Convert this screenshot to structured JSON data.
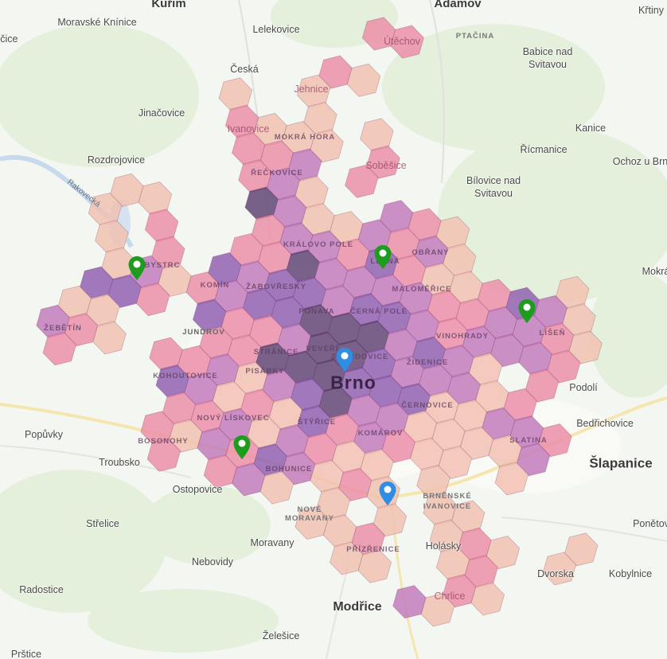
{
  "hexbins": {
    "level_colors": {
      "1": "#f2bfb0",
      "2": "#eb8ba6",
      "3": "#c177b9",
      "4": "#8d5cae",
      "5": "#5d4070"
    },
    "cells": [
      [
        5,
        -12,
        2
      ],
      [
        6,
        -12,
        2
      ],
      [
        3,
        -10,
        2
      ],
      [
        4,
        -10,
        1
      ],
      [
        2,
        -9,
        1
      ],
      [
        -1,
        -8,
        1
      ],
      [
        2,
        -8,
        1
      ],
      [
        4,
        -8,
        1
      ],
      [
        -1,
        -7,
        2
      ],
      [
        0,
        -7,
        1
      ],
      [
        1,
        -7,
        1
      ],
      [
        2,
        -7,
        1
      ],
      [
        4,
        -7,
        2
      ],
      [
        -1,
        -6,
        2
      ],
      [
        0,
        -6,
        2
      ],
      [
        1,
        -6,
        3
      ],
      [
        3,
        -6,
        2
      ],
      [
        -1,
        -5,
        2
      ],
      [
        0,
        -5,
        3
      ],
      [
        1,
        -5,
        1
      ],
      [
        4,
        -5,
        3
      ],
      [
        5,
        -5,
        2
      ],
      [
        6,
        -5,
        1
      ],
      [
        -1,
        -4,
        5
      ],
      [
        0,
        -4,
        3
      ],
      [
        1,
        -4,
        1
      ],
      [
        2,
        -4,
        1
      ],
      [
        3,
        -4,
        3
      ],
      [
        4,
        -4,
        2
      ],
      [
        5,
        -4,
        3
      ],
      [
        6,
        -4,
        1
      ],
      [
        10,
        -4,
        1
      ],
      [
        -6,
        -3,
        1
      ],
      [
        -5,
        -3,
        1
      ],
      [
        -1,
        -3,
        2
      ],
      [
        0,
        -3,
        3
      ],
      [
        1,
        -3,
        3
      ],
      [
        2,
        -3,
        2
      ],
      [
        3,
        -3,
        4
      ],
      [
        4,
        -3,
        2
      ],
      [
        5,
        -3,
        1
      ],
      [
        6,
        -3,
        1
      ],
      [
        7,
        -3,
        2
      ],
      [
        8,
        -3,
        4
      ],
      [
        9,
        -3,
        3
      ],
      [
        10,
        -3,
        1
      ],
      [
        -7,
        -2,
        1
      ],
      [
        -5,
        -2,
        2
      ],
      [
        -2,
        -2,
        2
      ],
      [
        -1,
        -2,
        2
      ],
      [
        0,
        -2,
        5
      ],
      [
        1,
        -2,
        3
      ],
      [
        2,
        -2,
        3
      ],
      [
        3,
        -2,
        3
      ],
      [
        4,
        -2,
        3
      ],
      [
        5,
        -2,
        2
      ],
      [
        6,
        -2,
        2
      ],
      [
        7,
        -2,
        3
      ],
      [
        8,
        -2,
        3
      ],
      [
        9,
        -2,
        2
      ],
      [
        10,
        -2,
        1
      ],
      [
        -7,
        -1,
        1
      ],
      [
        -5,
        -1,
        2
      ],
      [
        -3,
        -1,
        4
      ],
      [
        -2,
        -1,
        3
      ],
      [
        -1,
        -1,
        4
      ],
      [
        0,
        -1,
        4
      ],
      [
        1,
        -1,
        3
      ],
      [
        2,
        -1,
        4
      ],
      [
        3,
        -1,
        4
      ],
      [
        4,
        -1,
        3
      ],
      [
        5,
        -1,
        2
      ],
      [
        6,
        -1,
        3
      ],
      [
        7,
        -1,
        3
      ],
      [
        8,
        -1,
        3
      ],
      [
        9,
        -1,
        2
      ],
      [
        -7,
        0,
        1
      ],
      [
        -6,
        0,
        3
      ],
      [
        -5,
        0,
        1
      ],
      [
        -4,
        0,
        2
      ],
      [
        -3,
        0,
        3
      ],
      [
        -2,
        0,
        4
      ],
      [
        -1,
        0,
        4
      ],
      [
        0,
        0,
        5
      ],
      [
        1,
        0,
        5
      ],
      [
        2,
        0,
        5
      ],
      [
        3,
        0,
        3
      ],
      [
        4,
        0,
        4
      ],
      [
        5,
        0,
        3
      ],
      [
        6,
        0,
        1
      ],
      [
        8,
        0,
        2
      ],
      [
        -8,
        1,
        4
      ],
      [
        -7,
        1,
        4
      ],
      [
        -6,
        1,
        2
      ],
      [
        -4,
        1,
        4
      ],
      [
        -3,
        1,
        2
      ],
      [
        -2,
        1,
        2
      ],
      [
        -1,
        1,
        3
      ],
      [
        0,
        1,
        5
      ],
      [
        1,
        1,
        5
      ],
      [
        2,
        1,
        4
      ],
      [
        3,
        1,
        3
      ],
      [
        4,
        1,
        3
      ],
      [
        5,
        1,
        3
      ],
      [
        6,
        1,
        1
      ],
      [
        7,
        1,
        2
      ],
      [
        -9,
        2,
        1
      ],
      [
        -8,
        2,
        1
      ],
      [
        -4,
        2,
        2
      ],
      [
        -3,
        2,
        2
      ],
      [
        -2,
        2,
        5
      ],
      [
        -1,
        2,
        5
      ],
      [
        0,
        2,
        5
      ],
      [
        1,
        2,
        4
      ],
      [
        2,
        2,
        4
      ],
      [
        3,
        2,
        4
      ],
      [
        4,
        2,
        1
      ],
      [
        5,
        2,
        1
      ],
      [
        6,
        2,
        3
      ],
      [
        7,
        2,
        3
      ],
      [
        8,
        2,
        2
      ],
      [
        -10,
        3,
        3
      ],
      [
        -9,
        3,
        2
      ],
      [
        -8,
        3,
        1
      ],
      [
        -6,
        3,
        2
      ],
      [
        -5,
        3,
        2
      ],
      [
        -4,
        3,
        3
      ],
      [
        -3,
        3,
        1
      ],
      [
        -2,
        3,
        3
      ],
      [
        -1,
        3,
        4
      ],
      [
        0,
        3,
        5
      ],
      [
        1,
        3,
        3
      ],
      [
        2,
        3,
        3
      ],
      [
        3,
        3,
        1
      ],
      [
        4,
        3,
        1
      ],
      [
        5,
        3,
        1
      ],
      [
        6,
        3,
        1
      ],
      [
        7,
        3,
        3
      ],
      [
        -10,
        4,
        2
      ],
      [
        -6,
        4,
        4
      ],
      [
        -5,
        4,
        3
      ],
      [
        -4,
        4,
        1
      ],
      [
        -3,
        4,
        2
      ],
      [
        -2,
        4,
        1
      ],
      [
        -1,
        4,
        4
      ],
      [
        0,
        4,
        2
      ],
      [
        1,
        4,
        3
      ],
      [
        2,
        4,
        2
      ],
      [
        3,
        4,
        1
      ],
      [
        4,
        4,
        1
      ],
      [
        6,
        4,
        1
      ],
      [
        -6,
        5,
        2
      ],
      [
        -5,
        5,
        2
      ],
      [
        -4,
        5,
        3
      ],
      [
        -3,
        5,
        1
      ],
      [
        -2,
        5,
        3
      ],
      [
        -1,
        5,
        2
      ],
      [
        0,
        5,
        1
      ],
      [
        1,
        5,
        1
      ],
      [
        3,
        5,
        1
      ],
      [
        -7,
        6,
        2
      ],
      [
        -6,
        6,
        1
      ],
      [
        -5,
        6,
        3
      ],
      [
        -4,
        6,
        2
      ],
      [
        -3,
        6,
        4
      ],
      [
        -2,
        6,
        3
      ],
      [
        -1,
        6,
        1
      ],
      [
        0,
        6,
        2
      ],
      [
        1,
        6,
        1
      ],
      [
        3,
        6,
        1
      ],
      [
        4,
        6,
        1
      ],
      [
        8,
        6,
        1
      ],
      [
        -7,
        7,
        2
      ],
      [
        -5,
        7,
        2
      ],
      [
        -4,
        7,
        3
      ],
      [
        -3,
        7,
        1
      ],
      [
        -1,
        7,
        1
      ],
      [
        1,
        7,
        1
      ],
      [
        3,
        7,
        1
      ],
      [
        4,
        7,
        2
      ],
      [
        5,
        7,
        1
      ],
      [
        7,
        7,
        1
      ],
      [
        -2,
        8,
        1
      ],
      [
        -1,
        8,
        1
      ],
      [
        0,
        8,
        2
      ],
      [
        3,
        8,
        1
      ],
      [
        4,
        8,
        2
      ],
      [
        -1,
        9,
        1
      ],
      [
        0,
        9,
        1
      ],
      [
        3,
        9,
        2
      ],
      [
        4,
        9,
        1
      ],
      [
        1,
        10,
        3
      ],
      [
        2,
        10,
        1
      ]
    ]
  },
  "markers": {
    "green_color": "#1e9c1e",
    "blue_color": "#2f8ee3",
    "green_count": 4,
    "blue_count": 2
  },
  "labels": {
    "kurim": "Kuřim",
    "adamov": "Adamov",
    "krtiny": "Křtiny",
    "moravske_kninice": "Moravské Knínice",
    "lelekovice": "Lelekovice",
    "utechov": "Útěchov",
    "ptacina": "PTAČINA",
    "babice": "Babice nad",
    "babice2": "Svitavou",
    "ceska": "Česká",
    "jehnice": "Jehnice",
    "jinacovice": "Jinačovice",
    "ivanovice": "Ivanovice",
    "mokra_hora": "MOKRÁ HORA",
    "kanice": "Kanice",
    "ricmanice": "Řícmanice",
    "sobesice": "Soběšice",
    "rozdrojovice": "Rozdrojovice",
    "ochoz": "Ochoz u Brna",
    "bilovice": "Bílovice nad",
    "bilovice2": "Svitavou",
    "reckovice": "ŘEČKOVICE",
    "rakovecka": "Rakovecká",
    "kralovo_pole": "KRÁLOVO POLE",
    "lesna": "LESNÁ",
    "obrany": "OBŘANY",
    "bystrc": "BYSTRC",
    "komin": "KOMÍN",
    "zabovresky": "ŽABOVŘESKY",
    "malomerice": "MALOMĚŘICE",
    "mokra": "Mokrá",
    "ponava": "PONAVA",
    "cerna_pole": "ČERNÁ POLE",
    "zebetin": "ŽEBĚTÍN",
    "jundrov": "JUNDROV",
    "vinohrady": "VINOHRADY",
    "lisen": "LÍŠEŇ",
    "veveri": "VEVEŘÍ",
    "stranice": "STRÁNICE",
    "zabrdovice": "ZÁBRDOVICE",
    "zidenice": "ŽIDENICE",
    "pisarky": "PISÁRKY",
    "kohoutovice": "KOHOUTOVICE",
    "brno": "Brno",
    "podoli": "Podolí",
    "cernovice": "ČERNOVICE",
    "novy_liskovec": "NOVÝ LÍSKOVEC",
    "popuvky": "Popůvky",
    "bedrichovice": "Bedřichovice",
    "styrice": "ŠTÝŘICE",
    "komarov": "KOMÁROV",
    "slatina": "SLATINA",
    "bosonohy": "BOSONOHY",
    "troubsko": "Troubsko",
    "slapanice": "Šlapanice",
    "bohunice": "BOHUNICE",
    "ostopovice": "Ostopovice",
    "brnenske": "BRNĚNSKÉ",
    "ivanovice2": "IVANOVICE",
    "nove": "NOVÉ",
    "moravany_d": "MORAVANY",
    "strelice": "Střelice",
    "ponetov": "Ponětov",
    "moravany": "Moravany",
    "holasky": "Holásky",
    "prizrenice": "PŘÍZŘENICE",
    "nebovidy": "Nebovidy",
    "radostice": "Radostice",
    "dvorska": "Dvorska",
    "kobylnice": "Kobylnice",
    "chrlice": "Chrlice",
    "modrice": "Modřice",
    "zelesice": "Želešice",
    "prstice": "Prštice",
    "ice": "lčice"
  }
}
